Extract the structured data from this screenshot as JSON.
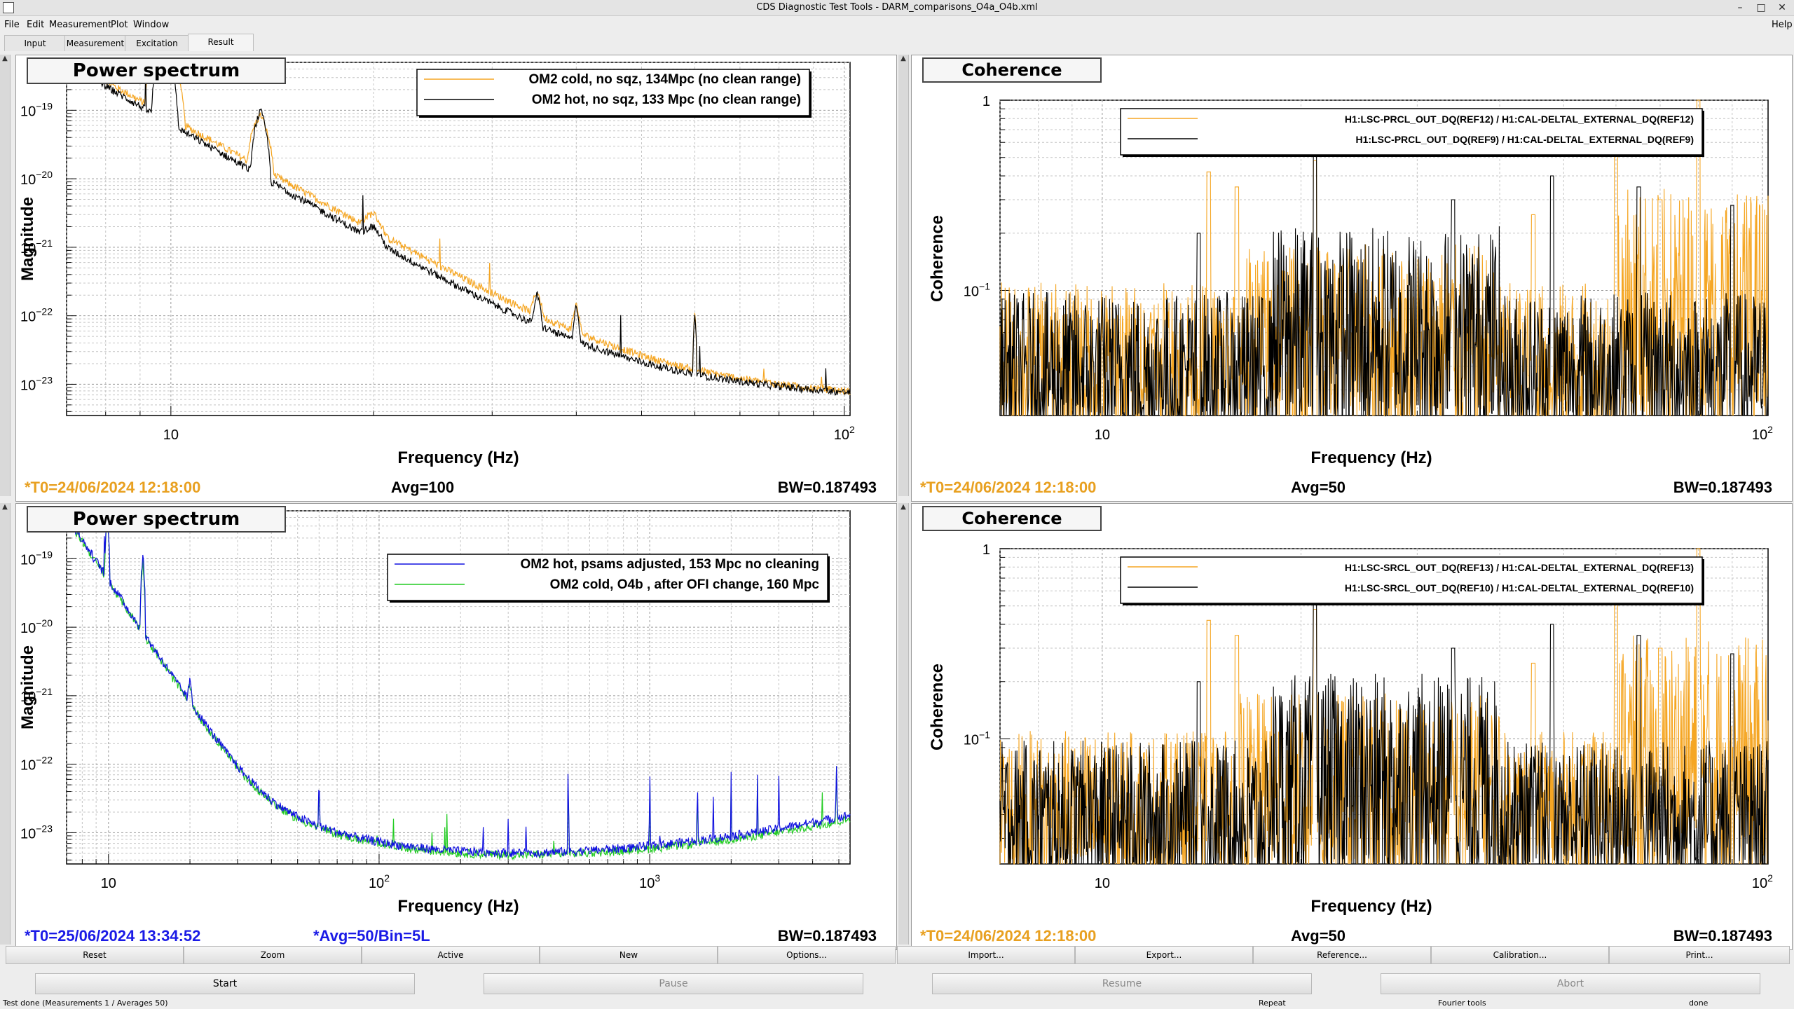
{
  "window": {
    "title": "CDS Diagnostic Test Tools - DARM_comparisons_O4a_O4b.xml",
    "minimize": "–",
    "maximize": "□",
    "close": "✕"
  },
  "menu": {
    "file": "File",
    "edit": "Edit",
    "measurement": "Measurement",
    "plot": "Plot",
    "window": "Window",
    "help": "Help"
  },
  "tabs": [
    "Input",
    "Measurement",
    "Excitation",
    "Result"
  ],
  "panels": {
    "tl": {
      "title": "Power spectrum",
      "ylabel": "Magnitude",
      "xlabel": "Frequency (Hz)",
      "legend": [
        "OM2 cold, no sqz, 134Mpc (no clean range)",
        "OM2 hot, no sqz, 133 Mpc (no clean range)"
      ],
      "yticks": [
        "10",
        "10",
        "10",
        "10",
        "10"
      ],
      "yexp": [
        "−19",
        "−20",
        "−21",
        "−22",
        "−23"
      ],
      "xticks": [
        "10",
        "10"
      ],
      "xexp": [
        "",
        "2"
      ],
      "t0": "*T0=24/06/2024 12:18:00",
      "avg": "Avg=100",
      "bw": "BW=0.187493"
    },
    "tr": {
      "title": "Coherence",
      "ylabel": "Coherence",
      "xlabel": "Frequency (Hz)",
      "legend": [
        "H1:LSC-PRCL_OUT_DQ(REF12) / H1:CAL-DELTAL_EXTERNAL_DQ(REF12)",
        "H1:LSC-PRCL_OUT_DQ(REF9) / H1:CAL-DELTAL_EXTERNAL_DQ(REF9)"
      ],
      "ytop": "1",
      "ymid": "10",
      "ymidexp": "−1",
      "xticks": [
        "10",
        "10"
      ],
      "xexp": [
        "",
        "2"
      ],
      "t0": "*T0=24/06/2024 12:18:00",
      "avg": "Avg=50",
      "bw": "BW=0.187493"
    },
    "bl": {
      "title": "Power spectrum",
      "ylabel": "Magnitude",
      "xlabel": "Frequency (Hz)",
      "legend": [
        "OM2 hot, psams adjusted, 153 Mpc no cleaning",
        "OM2 cold, O4b , after OFI change, 160 Mpc"
      ],
      "yticks": [
        "10",
        "10",
        "10",
        "10",
        "10"
      ],
      "yexp": [
        "−19",
        "−20",
        "−21",
        "−22",
        "−23"
      ],
      "xticks": [
        "10",
        "10",
        "10"
      ],
      "xexp": [
        "",
        "2",
        "3"
      ],
      "t0": "*T0=25/06/2024 13:34:52",
      "avg": "*Avg=50/Bin=5L",
      "bw": "BW=0.187493"
    },
    "br": {
      "title": "Coherence",
      "ylabel": "Coherence",
      "xlabel": "Frequency (Hz)",
      "legend": [
        "H1:LSC-SRCL_OUT_DQ(REF13) / H1:CAL-DELTAL_EXTERNAL_DQ(REF13)",
        "H1:LSC-SRCL_OUT_DQ(REF10) / H1:CAL-DELTAL_EXTERNAL_DQ(REF10)"
      ],
      "ytop": "1",
      "ymid": "10",
      "ymidexp": "−1",
      "xticks": [
        "10",
        "10"
      ],
      "xexp": [
        "",
        "2"
      ],
      "t0": "*T0=24/06/2024 12:18:00",
      "avg": "Avg=50",
      "bw": "BW=0.187493"
    }
  },
  "colors": {
    "orange": "#f5a623",
    "black": "#000000",
    "blue": "#1010e0",
    "green": "#22cc22",
    "t0_orange": "#e8a020",
    "t0_blue": "#1a1ae6"
  },
  "buttons_row1": [
    "Reset",
    "Zoom",
    "Active",
    "New",
    "Options...",
    "Import...",
    "Export...",
    "Reference...",
    "Calibration...",
    "Print..."
  ],
  "buttons_row2": [
    "Start",
    "Pause",
    "Resume",
    "Abort"
  ],
  "status": {
    "left": "Test done (Measurements 1 / Averages 50)",
    "repeat": "Repeat",
    "fourier": "Fourier tools",
    "done": "done"
  }
}
